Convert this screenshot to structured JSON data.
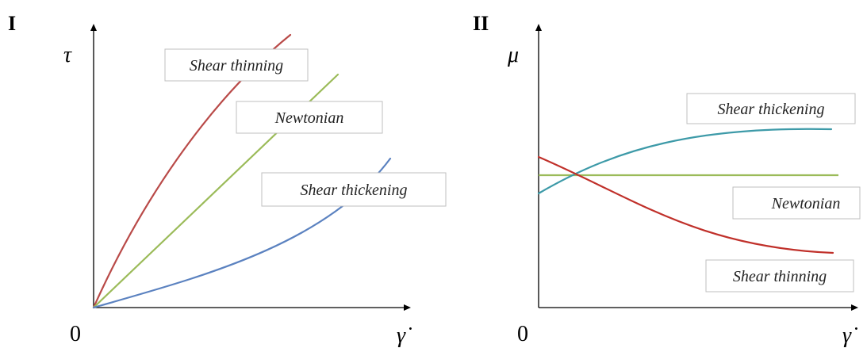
{
  "colors": {
    "shear_thinning": "#b94a48",
    "newtonian": "#9bbb59",
    "shear_thickening_I": "#5b82c0",
    "shear_thickening_II": "#3d9aa8",
    "shear_thinning_II": "#c0302a",
    "axis": "#000000"
  },
  "panel_I": {
    "letter": "I",
    "y_axis_symbol": "τ",
    "x_axis_symbol": "γ̇",
    "origin_label": "0",
    "labels": {
      "shear_thinning": "Shear thinning",
      "newtonian": "Newtonian",
      "shear_thickening": "Shear thickening"
    }
  },
  "panel_II": {
    "letter": "II",
    "y_axis_symbol": "μ",
    "x_axis_symbol": "γ̇",
    "origin_label": "0",
    "labels": {
      "shear_thickening": "Shear thickening",
      "newtonian": "Newtonian",
      "shear_thinning": "Shear thinning"
    }
  }
}
